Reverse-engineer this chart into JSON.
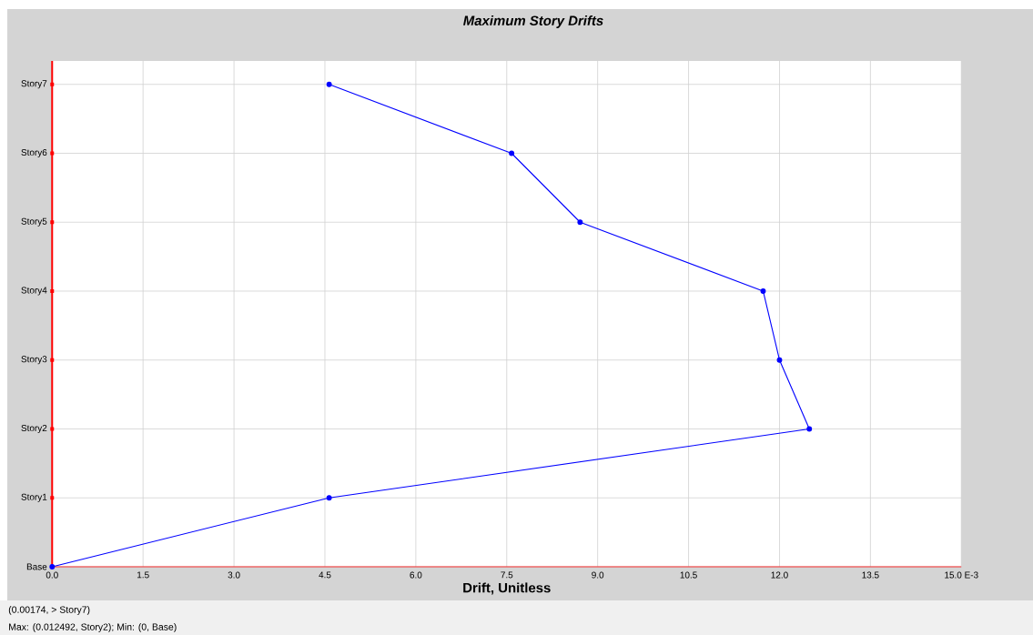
{
  "chart_data": {
    "type": "line",
    "title": "Maximum Story Drifts",
    "xlabel": "Drift, Unitless",
    "orientation": "horizontal",
    "categories": [
      "Story7",
      "Story6",
      "Story5",
      "Story4",
      "Story3",
      "Story2",
      "Story1",
      "Base"
    ],
    "series": [
      {
        "color": "#0000ff",
        "values": [
          4.57,
          7.58,
          8.71,
          11.73,
          12.0,
          12.492,
          4.57,
          0
        ]
      }
    ],
    "xlim": [
      0,
      15
    ],
    "xticks": [
      {
        "value": 0,
        "label": "0.0"
      },
      {
        "value": 1.5,
        "label": "1.5"
      },
      {
        "value": 3,
        "label": "3.0"
      },
      {
        "value": 4.5,
        "label": "4.5"
      },
      {
        "value": 6,
        "label": "6.0"
      },
      {
        "value": 7.5,
        "label": "7.5"
      },
      {
        "value": 9,
        "label": "9.0"
      },
      {
        "value": 10.5,
        "label": "10.5"
      },
      {
        "value": 12,
        "label": "12.0"
      },
      {
        "value": 13.5,
        "label": "13.5"
      },
      {
        "value": 15,
        "label": "15.0 E-3"
      }
    ],
    "grid": true,
    "marker": "circle",
    "line_style": "solid",
    "annotations": [
      "(0.00174, > Story7)",
      "Max: (0.012492, Story2);   Min: (0, Base)"
    ]
  }
}
